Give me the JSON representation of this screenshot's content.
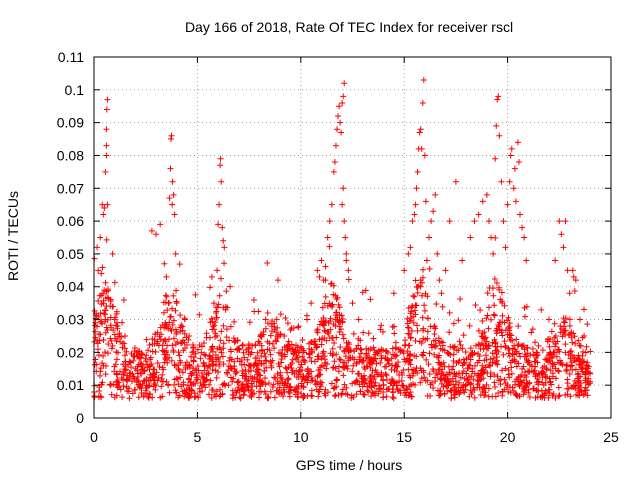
{
  "chart_data": {
    "type": "scatter",
    "title": "Day 166 of 2018, Rate Of TEC Index for receiver rscl",
    "xlabel": "GPS time / hours",
    "ylabel": "ROTI / TECUs",
    "xlim": [
      0,
      25
    ],
    "ylim": [
      0,
      0.11
    ],
    "x_ticks": [
      "0",
      "5",
      "10",
      "15",
      "20",
      "25"
    ],
    "y_ticks": [
      "0",
      "0.01",
      "0.02",
      "0.03",
      "0.04",
      "0.05",
      "0.06",
      "0.07",
      "0.08",
      "0.09",
      "0.1",
      "0.11"
    ],
    "x_tick_values": [
      0,
      5,
      10,
      15,
      20,
      25
    ],
    "y_tick_values": [
      0,
      0.01,
      0.02,
      0.03,
      0.04,
      0.05,
      0.06,
      0.07,
      0.08,
      0.09,
      0.1,
      0.11
    ],
    "grid": true,
    "marker": "+",
    "series_color": "#ff0000",
    "series": [
      {
        "name": "ROTI",
        "note": "Dense scatter of ~3000 points; baseline ~0.005-0.03 TECU/s across 0-24 h; representative peak points listed, remaining points sampled around baseline",
        "points": [
          [
            0.15,
            0.052
          ],
          [
            0.2,
            0.045
          ],
          [
            0.3,
            0.055
          ],
          [
            0.35,
            0.044
          ],
          [
            0.4,
            0.065
          ],
          [
            0.45,
            0.062
          ],
          [
            0.5,
            0.064
          ],
          [
            0.55,
            0.075
          ],
          [
            0.6,
            0.08
          ],
          [
            0.6,
            0.088
          ],
          [
            0.62,
            0.094
          ],
          [
            0.65,
            0.097
          ],
          [
            0.6,
            0.083
          ],
          [
            0.65,
            0.065
          ],
          [
            0.45,
            0.035
          ],
          [
            0.55,
            0.03
          ],
          [
            0.9,
            0.05
          ],
          [
            1.0,
            0.03
          ],
          [
            1.5,
            0.025
          ],
          [
            2.8,
            0.057
          ],
          [
            3.0,
            0.056
          ],
          [
            3.2,
            0.059
          ],
          [
            3.4,
            0.047
          ],
          [
            3.5,
            0.043
          ],
          [
            3.6,
            0.035
          ],
          [
            3.65,
            0.067
          ],
          [
            3.7,
            0.076
          ],
          [
            3.72,
            0.085
          ],
          [
            3.75,
            0.086
          ],
          [
            3.78,
            0.065
          ],
          [
            3.8,
            0.072
          ],
          [
            3.85,
            0.068
          ],
          [
            3.9,
            0.062
          ],
          [
            3.95,
            0.05
          ],
          [
            4.0,
            0.035
          ],
          [
            4.4,
            0.03
          ],
          [
            4.6,
            0.025
          ],
          [
            5.7,
            0.043
          ],
          [
            5.8,
            0.035
          ],
          [
            5.9,
            0.032
          ],
          [
            5.95,
            0.045
          ],
          [
            6.0,
            0.059
          ],
          [
            6.05,
            0.065
          ],
          [
            6.1,
            0.077
          ],
          [
            6.12,
            0.079
          ],
          [
            6.15,
            0.072
          ],
          [
            6.2,
            0.058
          ],
          [
            6.25,
            0.054
          ],
          [
            6.3,
            0.052
          ],
          [
            7.5,
            0.022
          ],
          [
            8.3,
            0.03
          ],
          [
            8.4,
            0.032
          ],
          [
            8.6,
            0.028
          ],
          [
            8.9,
            0.042
          ],
          [
            9.2,
            0.025
          ],
          [
            10.3,
            0.03
          ],
          [
            10.5,
            0.035
          ],
          [
            10.8,
            0.045
          ],
          [
            10.9,
            0.043
          ],
          [
            11.0,
            0.048
          ],
          [
            11.1,
            0.042
          ],
          [
            11.3,
            0.055
          ],
          [
            11.4,
            0.06
          ],
          [
            11.5,
            0.065
          ],
          [
            11.6,
            0.075
          ],
          [
            11.65,
            0.078
          ],
          [
            11.7,
            0.083
          ],
          [
            11.75,
            0.088
          ],
          [
            11.8,
            0.092
          ],
          [
            11.85,
            0.095
          ],
          [
            11.9,
            0.09
          ],
          [
            11.95,
            0.087
          ],
          [
            12.0,
            0.065
          ],
          [
            12.05,
            0.07
          ],
          [
            12.1,
            0.06
          ],
          [
            12.15,
            0.055
          ],
          [
            12.2,
            0.048
          ],
          [
            12.0,
            0.096
          ],
          [
            12.05,
            0.098
          ],
          [
            12.1,
            0.102
          ],
          [
            12.2,
            0.05
          ],
          [
            12.3,
            0.045
          ],
          [
            12.5,
            0.035
          ],
          [
            12.8,
            0.03
          ],
          [
            14.5,
            0.038
          ],
          [
            15.0,
            0.045
          ],
          [
            15.2,
            0.05
          ],
          [
            15.3,
            0.052
          ],
          [
            15.4,
            0.06
          ],
          [
            15.5,
            0.062
          ],
          [
            15.55,
            0.065
          ],
          [
            15.6,
            0.07
          ],
          [
            15.65,
            0.075
          ],
          [
            15.7,
            0.082
          ],
          [
            15.75,
            0.087
          ],
          [
            15.8,
            0.088
          ],
          [
            15.85,
            0.082
          ],
          [
            15.9,
            0.096
          ],
          [
            15.95,
            0.103
          ],
          [
            16.0,
            0.08
          ],
          [
            16.05,
            0.066
          ],
          [
            16.1,
            0.048
          ],
          [
            16.2,
            0.055
          ],
          [
            16.3,
            0.06
          ],
          [
            16.4,
            0.063
          ],
          [
            16.5,
            0.068
          ],
          [
            16.6,
            0.05
          ],
          [
            16.7,
            0.042
          ],
          [
            16.8,
            0.038
          ],
          [
            17.0,
            0.045
          ],
          [
            17.2,
            0.06
          ],
          [
            17.5,
            0.072
          ],
          [
            17.8,
            0.048
          ],
          [
            18.2,
            0.055
          ],
          [
            18.4,
            0.06
          ],
          [
            18.6,
            0.062
          ],
          [
            18.8,
            0.066
          ],
          [
            19.0,
            0.068
          ],
          [
            19.1,
            0.06
          ],
          [
            19.2,
            0.055
          ],
          [
            19.3,
            0.05
          ],
          [
            19.4,
            0.079
          ],
          [
            19.45,
            0.089
          ],
          [
            19.5,
            0.097
          ],
          [
            19.55,
            0.098
          ],
          [
            19.6,
            0.086
          ],
          [
            19.7,
            0.072
          ],
          [
            19.8,
            0.06
          ],
          [
            19.9,
            0.052
          ],
          [
            20.0,
            0.065
          ],
          [
            20.1,
            0.072
          ],
          [
            20.15,
            0.08
          ],
          [
            20.2,
            0.082
          ],
          [
            20.3,
            0.07
          ],
          [
            20.35,
            0.076
          ],
          [
            20.4,
            0.066
          ],
          [
            20.5,
            0.084
          ],
          [
            20.55,
            0.078
          ],
          [
            20.6,
            0.062
          ],
          [
            20.7,
            0.058
          ],
          [
            20.8,
            0.055
          ],
          [
            20.9,
            0.048
          ],
          [
            22.0,
            0.03
          ],
          [
            22.3,
            0.048
          ],
          [
            22.5,
            0.06
          ],
          [
            22.6,
            0.056
          ],
          [
            22.7,
            0.052
          ],
          [
            22.8,
            0.06
          ],
          [
            22.9,
            0.045
          ],
          [
            23.0,
            0.038
          ],
          [
            23.2,
            0.043
          ],
          [
            23.3,
            0.042
          ],
          [
            23.5,
            0.03
          ],
          [
            23.7,
            0.025
          ],
          [
            2.0,
            0.015
          ],
          [
            4.0,
            0.012
          ],
          [
            6.5,
            0.01
          ],
          [
            9.0,
            0.013
          ],
          [
            13.0,
            0.011
          ],
          [
            14.0,
            0.01
          ],
          [
            17.0,
            0.012
          ],
          [
            21.0,
            0.014
          ],
          [
            23.9,
            0.012
          ]
        ]
      }
    ]
  }
}
